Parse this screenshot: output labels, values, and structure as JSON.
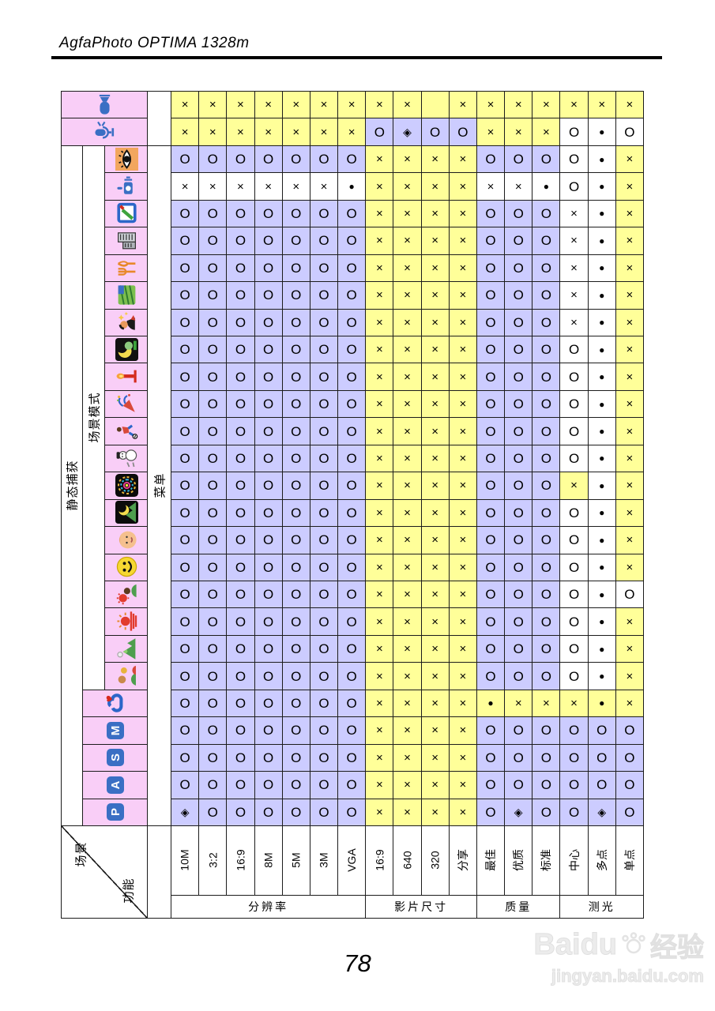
{
  "page": {
    "header_title": "AgfaPhoto OPTIMA 1328m",
    "page_number": "78",
    "watermark": {
      "brand_latin": "Baidu",
      "brand_cjk": "经验",
      "url": "jingyan.baidu.com"
    }
  },
  "colors": {
    "yellow": "#FFFF99",
    "lavender": "#CCCCFF",
    "pink": "#F9CEF7",
    "white": "#FFFFFF",
    "badge_blue": "#3A6FC4"
  },
  "table": {
    "corner": {
      "top_label": "场景",
      "bottom_label": "功能"
    },
    "left_labels": {
      "still_capture": "静态捕获",
      "scene_mode": "场景模式",
      "menu": "菜单"
    },
    "columns": [
      "10M",
      "3:2",
      "16:9",
      "8M",
      "5M",
      "3M",
      "VGA",
      "16:9",
      "640",
      "320",
      "分享",
      "最佳",
      "优质",
      "标准",
      "中心",
      "多点",
      "单点"
    ],
    "column_groups": [
      {
        "label": "分辨率",
        "span": 7
      },
      {
        "label": "影片尺寸",
        "span": 4
      },
      {
        "label": "质量",
        "span": 3
      },
      {
        "label": "测光",
        "span": 3
      }
    ],
    "rows": [
      {
        "id": "video-mode",
        "icon": "video-camera-icon",
        "cells": "××××××××× ×××××××",
        "bg": "yyyyyyyyyyyyyyyyy"
      },
      {
        "id": "voice-mode",
        "icon": "microphone-icon",
        "cells": "×××××××O◈OO×××O●O",
        "bg": "yyyyyyyllllyyywww"
      },
      {
        "id": "scene-eye",
        "icon": "eye-icon",
        "cells": "OOOOOOO××××OOOO●×",
        "bg": "lllllllyyyylllwwy"
      },
      {
        "id": "scene-stabilizer",
        "icon": "stabilizer-icon",
        "cells": "××××××●××××××●O●×",
        "bg": "wwwwwwwyyyywwwwwy"
      },
      {
        "id": "scene-photo-frame",
        "icon": "photo-frame-icon",
        "cells": "OOOOOOO××××OOO×●×",
        "bg": "lllllllyyyylllwwy"
      },
      {
        "id": "scene-building",
        "icon": "building-icon",
        "cells": "OOOOOOO××××OOO×●×",
        "bg": "lllllllyyyylllwwy"
      },
      {
        "id": "scene-food",
        "icon": "food-icon",
        "cells": "OOOOOOO××××OOO×●×",
        "bg": "lllllllyyyylllwwy"
      },
      {
        "id": "scene-field",
        "icon": "field-icon",
        "cells": "OOOOOOO××××OOO×●×",
        "bg": "lllllllyyyylllwwy"
      },
      {
        "id": "scene-night-portrait",
        "icon": "sparkle-portrait-icon",
        "cells": "OOOOOOO××××OOO×●×",
        "bg": "lllllllyyyylllwwy"
      },
      {
        "id": "scene-night-scene",
        "icon": "night-portrait-icon",
        "cells": "OOOOOOO××××OOOO●×",
        "bg": "lllllllyyyylllwwy"
      },
      {
        "id": "scene-candlelight",
        "icon": "candlelight-icon",
        "cells": "OOOOOOO××××OOOO●×",
        "bg": "lllllllyyyylllwwy"
      },
      {
        "id": "scene-party",
        "icon": "party-icon",
        "cells": "OOOOOOO××××OOOO●×",
        "bg": "lllllllyyyylllwwy"
      },
      {
        "id": "scene-sports",
        "icon": "sports-icon",
        "cells": "OOOOOOO××××OOOO●×",
        "bg": "lllllllyyyylllwwy"
      },
      {
        "id": "scene-snow",
        "icon": "snowman-icon",
        "cells": "OOOOOOO××××OOOO●×",
        "bg": "lllllllyyyylllwwy"
      },
      {
        "id": "scene-fireworks",
        "icon": "fireworks-icon",
        "cells": "OOOOOOO××××OOO×●×",
        "bg": "lllllllyyyylllywy"
      },
      {
        "id": "scene-night-landscape",
        "icon": "night-landscape-icon",
        "cells": "OOOOOOO××××OOOO●×",
        "bg": "lllllllyyyylllwwy"
      },
      {
        "id": "scene-skin-tone",
        "icon": "baby-face-icon",
        "cells": "OOOOOOO××××OOOO●×",
        "bg": "lllllllyyyylllwwy"
      },
      {
        "id": "scene-smile",
        "icon": "smile-icon",
        "cells": "OOOOOOO××××OOOO●×",
        "bg": "lllllllyyyylllwwy"
      },
      {
        "id": "scene-backlight",
        "icon": "backlight-icon",
        "cells": "OOOOOOO××××OOOO●O",
        "bg": "lllllllyyyylllwww"
      },
      {
        "id": "scene-sunset",
        "icon": "sunset-icon",
        "cells": "OOOOOOO××××OOOO●×",
        "bg": "lllllllyyyylllwwy"
      },
      {
        "id": "scene-landscape",
        "icon": "landscape-icon",
        "cells": "OOOOOOO××××OOOO●×",
        "bg": "lllllllyyyylllwwy"
      },
      {
        "id": "scene-portrait",
        "icon": "two-people-icon",
        "cells": "OOOOOOO××××OOOO●×",
        "bg": "lllllllyyyylllwwy"
      },
      {
        "id": "scene-composite",
        "icon": "heart-composite-icon",
        "cells": "OOOOOOO××××●×××●×",
        "bg": "lllllllyyyyyyyyyy"
      },
      {
        "id": "mode-m",
        "badge": "M",
        "cells": "OOOOOOO××××OOOOOO",
        "bg": "lllllllyyyyllllll"
      },
      {
        "id": "mode-s",
        "badge": "S",
        "cells": "OOOOOOO××××OOOOOO",
        "bg": "lllllllyyyyllllll"
      },
      {
        "id": "mode-a",
        "badge": "A",
        "cells": "OOOOOOO××××OOOOOO",
        "bg": "lllllllyyyyllllll"
      },
      {
        "id": "mode-p",
        "badge": "P",
        "cells": "◈OOOOOO××××O◈OO◈O",
        "bg": "lllllllyyyyllllll"
      }
    ]
  }
}
